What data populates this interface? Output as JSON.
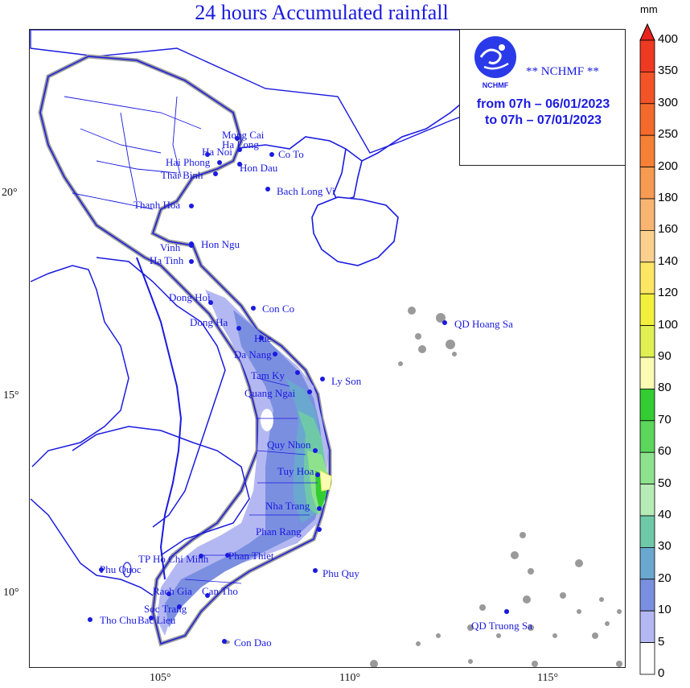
{
  "title": "24 hours Accumulated rainfall",
  "agency": {
    "name": "** NCHMF **",
    "logo_text": "NCHMF",
    "period_from": "from 07h – 06/01/2023",
    "period_to": "to 07h  – 07/01/2023"
  },
  "axes": {
    "lat_labels": [
      "20°",
      "15°",
      "10°"
    ],
    "lon_labels": [
      "105°",
      "110°",
      "115°"
    ]
  },
  "legend": {
    "unit": "mm",
    "labels": [
      "400",
      "350",
      "300",
      "250",
      "200",
      "180",
      "160",
      "140",
      "120",
      "100",
      "90",
      "80",
      "70",
      "60",
      "50",
      "40",
      "30",
      "20",
      "10",
      "5",
      "0"
    ],
    "colors": [
      "#e8231e",
      "#ee3a22",
      "#f25427",
      "#f46a2c",
      "#f58036",
      "#f79a52",
      "#f8b572",
      "#fbd08e",
      "#fde663",
      "#f2f03c",
      "#e0ef52",
      "#fbfbb4",
      "#33cc33",
      "#5cd65c",
      "#8ee28e",
      "#b7ecb7",
      "#6fc9a8",
      "#6aa8cf",
      "#7b8fe0",
      "#b4b8f2",
      "#ffffff"
    ]
  },
  "stations": [
    {
      "name": "Mong Cai"
    },
    {
      "name": "Ha Long"
    },
    {
      "name": "Co To"
    },
    {
      "name": "Ha Noi"
    },
    {
      "name": "Hai Phong"
    },
    {
      "name": "Hon Dau"
    },
    {
      "name": "Thai Binh"
    },
    {
      "name": "Bach Long Vi"
    },
    {
      "name": "Thanh Hoa"
    },
    {
      "name": "Vinh"
    },
    {
      "name": "Hon Ngu"
    },
    {
      "name": "Ha Tinh"
    },
    {
      "name": "Dong Hoi"
    },
    {
      "name": "Con Co"
    },
    {
      "name": "Dong Ha"
    },
    {
      "name": "Hue"
    },
    {
      "name": "Da Nang"
    },
    {
      "name": "QD Hoang Sa"
    },
    {
      "name": "Tam Ky"
    },
    {
      "name": "Ly Son"
    },
    {
      "name": "Quang Ngai"
    },
    {
      "name": "Quy Nhon"
    },
    {
      "name": "Tuy Hoa"
    },
    {
      "name": "Nha Trang"
    },
    {
      "name": "Phan Rang"
    },
    {
      "name": "TP Ho Chi Minh"
    },
    {
      "name": "Phan Thiet"
    },
    {
      "name": "Phu Quoc"
    },
    {
      "name": "Phu Quy"
    },
    {
      "name": "Rach Gia"
    },
    {
      "name": "Can Tho"
    },
    {
      "name": "Soc Trang"
    },
    {
      "name": "Tho Chu"
    },
    {
      "name": "Bac Lieu"
    },
    {
      "name": "QD Truong Sa"
    },
    {
      "name": "Con Dao"
    }
  ]
}
